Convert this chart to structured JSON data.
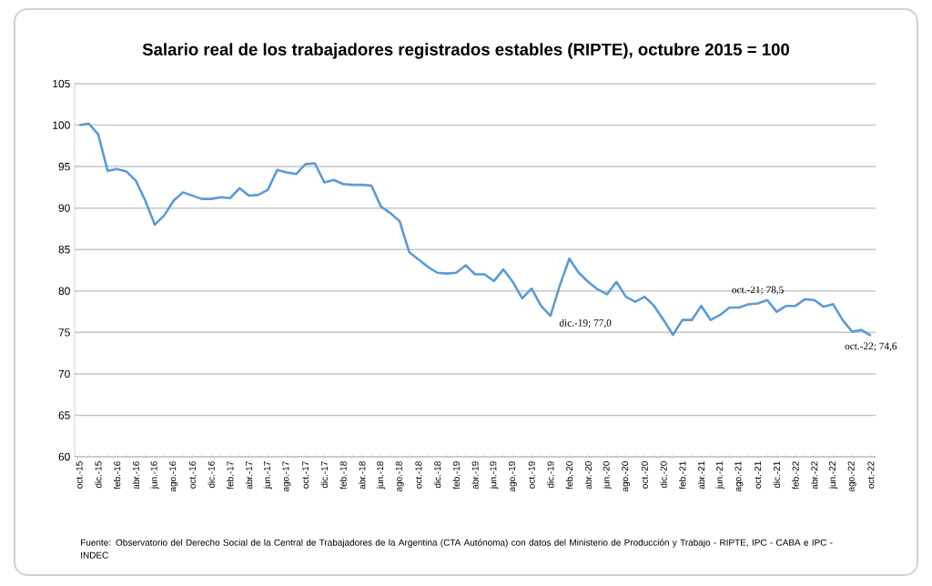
{
  "chart_data": {
    "type": "line",
    "title": "Salario real de los trabajadores registrados estables (RIPTE), octubre 2015 = 100",
    "categories": [
      "oct.-15",
      null,
      "dic.-15",
      null,
      "feb.-16",
      null,
      "abr.-16",
      null,
      "jun.-16",
      null,
      "ago.-16",
      null,
      "oct.-16",
      null,
      "dic.-16",
      null,
      "feb.-17",
      null,
      "abr.-17",
      null,
      "jun.-17",
      null,
      "ago.-17",
      null,
      "oct.-17",
      null,
      "dic.-17",
      null,
      "feb.-18",
      null,
      "abr.-18",
      null,
      "jun.-18",
      null,
      "ago.-18",
      null,
      "oct.-18",
      null,
      "dic.-18",
      null,
      "feb.-19",
      null,
      "abr.-19",
      null,
      "jun.-19",
      null,
      "ago.-19",
      null,
      "oct.-19",
      null,
      "dic.-19",
      null,
      "feb.-20",
      null,
      "abr.-20",
      null,
      "jun.-20",
      null,
      "ago.-20",
      null,
      "oct.-20",
      null,
      "dic.-20",
      null,
      "feb.-21",
      null,
      "abr.-21",
      null,
      "jun.-21",
      null,
      "ago.-21",
      null,
      "oct.-21",
      null,
      "dic.-21",
      null,
      "feb.-22",
      null,
      "abr.-22",
      null,
      "jun.-22",
      null,
      "ago.-22",
      null,
      "oct.-22"
    ],
    "values": [
      100.0,
      100.2,
      98.9,
      94.5,
      94.7,
      94.4,
      93.3,
      90.9,
      88.0,
      89.1,
      90.9,
      91.9,
      91.5,
      91.1,
      91.1,
      91.3,
      91.2,
      92.4,
      91.5,
      91.6,
      92.2,
      94.6,
      94.3,
      94.1,
      95.3,
      95.4,
      93.1,
      93.4,
      92.9,
      92.8,
      92.8,
      92.7,
      90.2,
      89.4,
      88.4,
      84.7,
      83.8,
      82.9,
      82.2,
      82.1,
      82.2,
      83.1,
      82.0,
      82.0,
      81.2,
      82.6,
      81.1,
      79.1,
      80.3,
      78.2,
      77.0,
      80.7,
      83.9,
      82.2,
      81.1,
      80.2,
      79.6,
      81.1,
      79.3,
      78.7,
      79.3,
      78.2,
      76.5,
      74.7,
      76.5,
      76.5,
      78.2,
      76.5,
      77.1,
      78.0,
      78.0,
      78.4,
      78.5,
      78.9,
      77.5,
      78.2,
      78.2,
      79.0,
      78.9,
      78.1,
      78.4,
      76.5,
      75.1,
      75.3,
      74.6
    ],
    "color": "#5b9bd5",
    "ylim": [
      60,
      105
    ],
    "yticks": [
      60,
      65,
      70,
      75,
      80,
      85,
      90,
      95,
      100,
      105
    ],
    "grid": "y",
    "legend": false,
    "marker": "none",
    "line_style": "solid",
    "annotations": [
      {
        "text": "dic.-19; 77,0",
        "x": "dic.-19",
        "y": 77.0
      },
      {
        "text": "oct.-21; 78,5",
        "x": "oct.-21",
        "y": 78.5
      },
      {
        "text": "oct.-22; 74,6",
        "x": "oct.-22",
        "y": 74.6
      },
      "Fuente: Observatorio del Derecho Social de la Central de Trabajadores de la Argentina (CTA Autónoma) con datos del Ministerio de Producción y Trabajo - RIPTE, IPC - CABA e IPC - INDEC"
    ]
  }
}
